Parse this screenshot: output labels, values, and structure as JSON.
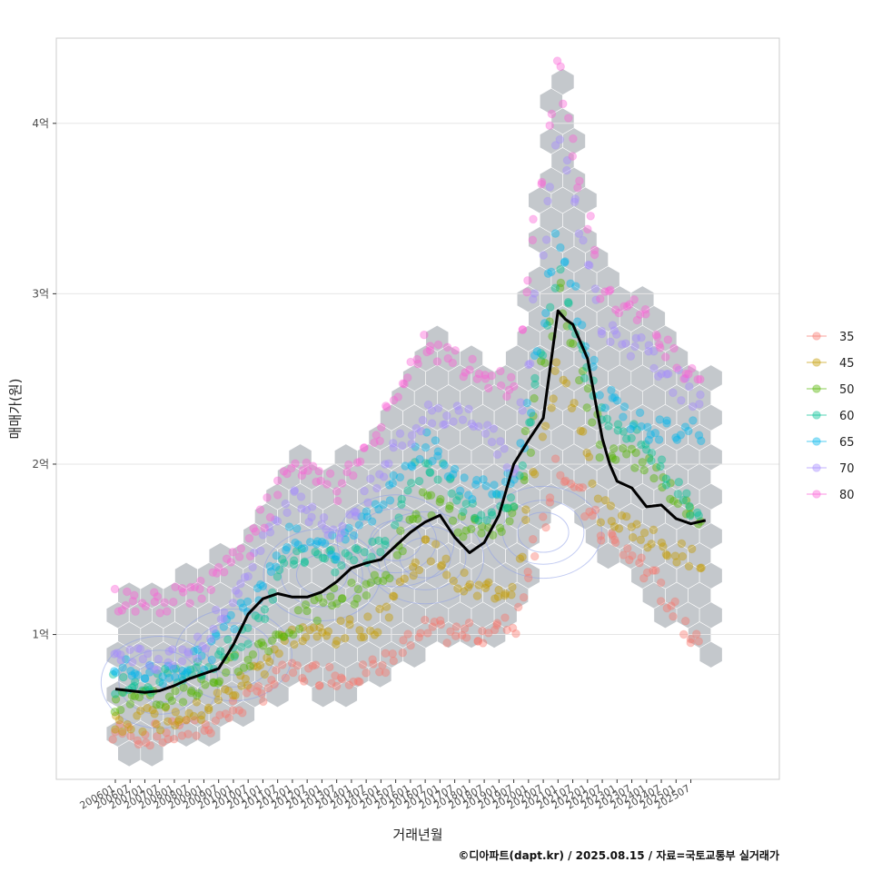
{
  "chart_data": {
    "type": "scatter",
    "title": "",
    "xlabel": "거래년월",
    "ylabel": "매매가(원)",
    "caption": "©디아파트(dapt.kr) / 2025.08.15 / 자료=국토교통부 실거래가",
    "x_ticks": [
      "200601",
      "200607",
      "200701",
      "200707",
      "200801",
      "200807",
      "200901",
      "200907",
      "201001",
      "201007",
      "201101",
      "201107",
      "201201",
      "201207",
      "201301",
      "201307",
      "201401",
      "201407",
      "201501",
      "201507",
      "201601",
      "201607",
      "201701",
      "201707",
      "201801",
      "201807",
      "201901",
      "201907",
      "202001",
      "202007",
      "202101",
      "202107",
      "202201",
      "202207",
      "202301",
      "202307",
      "202401",
      "202407",
      "202501",
      "202507"
    ],
    "y_ticks": [
      {
        "value": 1,
        "label": "1억"
      },
      {
        "value": 2,
        "label": "2억"
      },
      {
        "value": 3,
        "label": "3억"
      },
      {
        "value": 4,
        "label": "4억"
      }
    ],
    "ylim": [
      0.15,
      4.5
    ],
    "xlim": [
      -4,
      45
    ],
    "legend": {
      "title": "",
      "position": "right",
      "items": [
        {
          "name": "35",
          "color": "#F8766D"
        },
        {
          "name": "45",
          "color": "#C49A00"
        },
        {
          "name": "50",
          "color": "#53B400"
        },
        {
          "name": "60",
          "color": "#00C094"
        },
        {
          "name": "65",
          "color": "#00B6EB"
        },
        {
          "name": "70",
          "color": "#A58AFF"
        },
        {
          "name": "80",
          "color": "#FB61D7"
        }
      ]
    },
    "trend_line": {
      "name": "moving average",
      "color": "#000000",
      "x": [
        0,
        1,
        2,
        3,
        4,
        5,
        6,
        7,
        8,
        9,
        10,
        11,
        12,
        13,
        14,
        15,
        16,
        17,
        18,
        19,
        20,
        21,
        22,
        23,
        24,
        25,
        26,
        27,
        28,
        29,
        30,
        30.5,
        31,
        32,
        33,
        33.5,
        34,
        35,
        36,
        37,
        38,
        39,
        40
      ],
      "y": [
        0.68,
        0.67,
        0.66,
        0.67,
        0.7,
        0.74,
        0.77,
        0.8,
        0.94,
        1.12,
        1.21,
        1.24,
        1.22,
        1.22,
        1.25,
        1.31,
        1.39,
        1.42,
        1.44,
        1.52,
        1.6,
        1.66,
        1.7,
        1.57,
        1.48,
        1.54,
        1.7,
        2.0,
        2.14,
        2.27,
        2.9,
        2.85,
        2.82,
        2.62,
        2.15,
        2.0,
        1.9,
        1.86,
        1.75,
        1.76,
        1.68,
        1.65,
        1.67
      ]
    },
    "series": [
      {
        "name": "35",
        "x": [
          0,
          3,
          6,
          9,
          12,
          15,
          18,
          21,
          24,
          27,
          30,
          33,
          36,
          39
        ],
        "y": [
          0.42,
          0.41,
          0.45,
          0.62,
          0.78,
          0.76,
          0.8,
          1.02,
          1.0,
          1.05,
          2.0,
          1.6,
          1.38,
          1.0
        ]
      },
      {
        "name": "45",
        "x": [
          0,
          3,
          6,
          9,
          12,
          15,
          18,
          21,
          24,
          27,
          30,
          33,
          36,
          39
        ],
        "y": [
          0.5,
          0.5,
          0.55,
          0.74,
          1.0,
          1.0,
          1.08,
          1.52,
          1.25,
          1.28,
          2.6,
          1.72,
          1.58,
          1.45
        ]
      },
      {
        "name": "50",
        "x": [
          0,
          3,
          6,
          9,
          12,
          15,
          18,
          21,
          24,
          27,
          30,
          33,
          36,
          39
        ],
        "y": [
          0.6,
          0.61,
          0.7,
          0.88,
          1.05,
          1.22,
          1.3,
          1.8,
          1.6,
          1.7,
          3.0,
          2.1,
          2.0,
          1.7
        ]
      },
      {
        "name": "60",
        "x": [
          0,
          3,
          6,
          9,
          12,
          15,
          18,
          21,
          24,
          27,
          30,
          33,
          36,
          39
        ],
        "y": [
          0.72,
          0.72,
          0.82,
          1.0,
          1.48,
          1.42,
          1.5,
          2.05,
          1.72,
          1.78,
          3.1,
          2.3,
          2.1,
          1.75
        ]
      },
      {
        "name": "65",
        "x": [
          0,
          3,
          6,
          9,
          12,
          15,
          18,
          21,
          24,
          27,
          30,
          33,
          36,
          39
        ],
        "y": [
          0.8,
          0.76,
          0.86,
          1.2,
          1.6,
          1.5,
          1.78,
          2.12,
          1.86,
          1.9,
          3.3,
          2.4,
          2.2,
          2.2
        ]
      },
      {
        "name": "70",
        "x": [
          0,
          3,
          6,
          9,
          12,
          15,
          18,
          21,
          24,
          27,
          30,
          33,
          36,
          39
        ],
        "y": [
          0.86,
          0.86,
          0.93,
          1.38,
          1.8,
          1.58,
          1.95,
          2.3,
          2.3,
          2.0,
          3.9,
          2.8,
          2.65,
          2.4
        ]
      },
      {
        "name": "80",
        "x": [
          0,
          3,
          6,
          9,
          12,
          15,
          18,
          21,
          24,
          27,
          30,
          33,
          36,
          39
        ],
        "y": [
          1.2,
          1.18,
          1.28,
          1.5,
          2.0,
          1.85,
          2.2,
          2.7,
          2.55,
          2.45,
          4.3,
          3.0,
          2.85,
          2.5
        ]
      }
    ]
  }
}
